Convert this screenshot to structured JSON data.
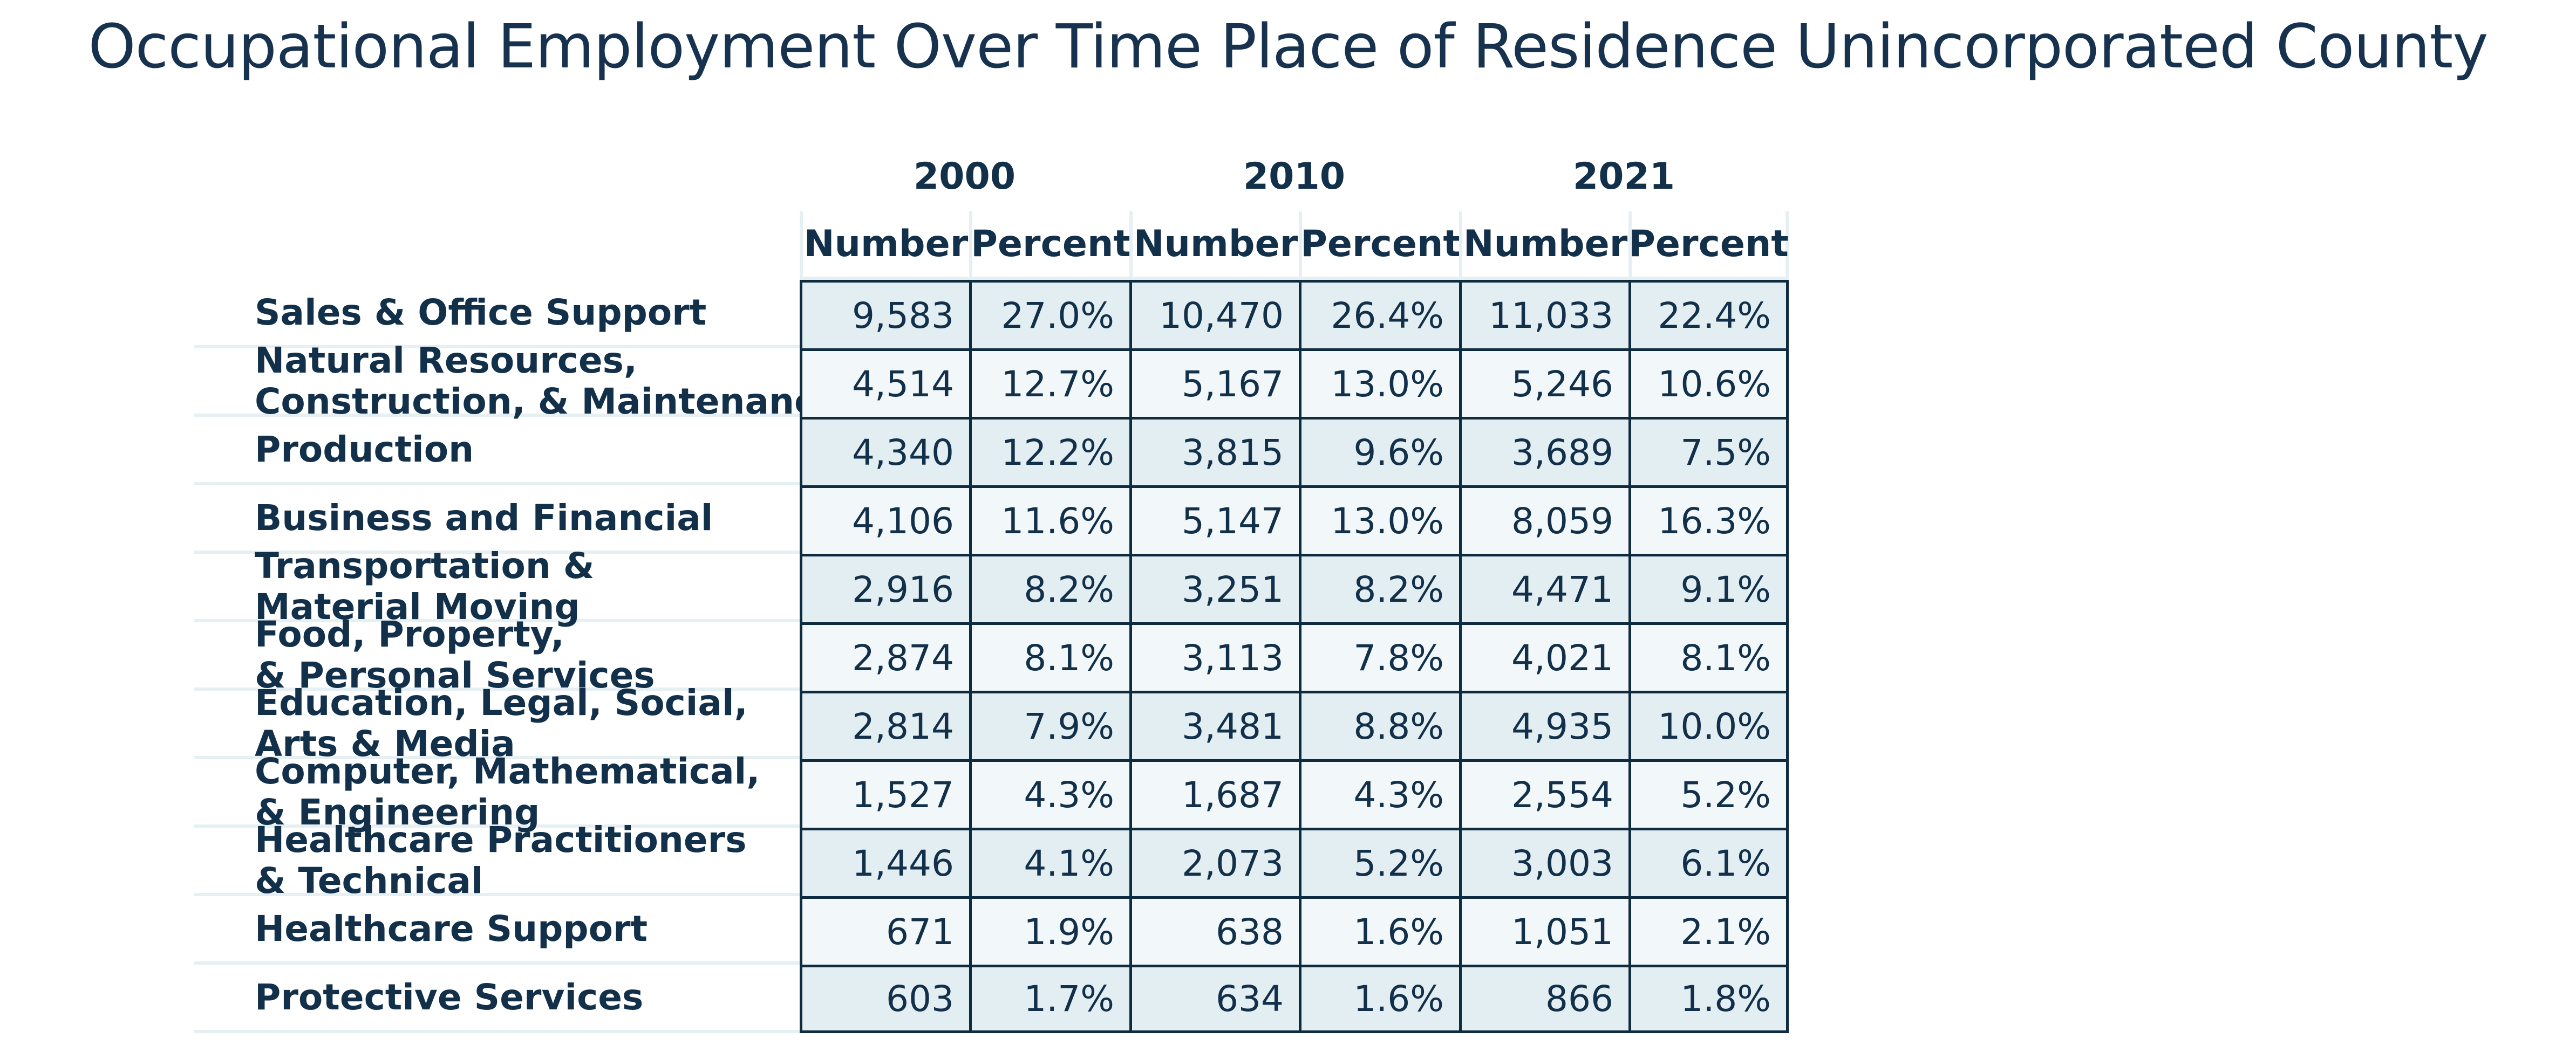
{
  "title": "Occupational Employment Over Time Place of Residence Unincorporated County",
  "years": [
    "2000",
    "2010",
    "2021"
  ],
  "column_headers": [
    "Number",
    "Percent",
    "Number",
    "Percent",
    "Number",
    "Percent"
  ],
  "rows": [
    {
      "label": "Sales & Office Support",
      "values": [
        "9,583",
        "27.0%",
        "10,470",
        "26.4%",
        "11,033",
        "22.4%"
      ]
    },
    {
      "label": "Natural Resources,\nConstruction, & Maintenance",
      "values": [
        "4,514",
        "12.7%",
        "5,167",
        "13.0%",
        "5,246",
        "10.6%"
      ]
    },
    {
      "label": "Production",
      "values": [
        "4,340",
        "12.2%",
        "3,815",
        "9.6%",
        "3,689",
        "7.5%"
      ]
    },
    {
      "label": "Business and Financial",
      "values": [
        "4,106",
        "11.6%",
        "5,147",
        "13.0%",
        "8,059",
        "16.3%"
      ]
    },
    {
      "label": "Transportation &\nMaterial Moving",
      "values": [
        "2,916",
        "8.2%",
        "3,251",
        "8.2%",
        "4,471",
        "9.1%"
      ]
    },
    {
      "label": "Food, Property,\n& Personal Services",
      "values": [
        "2,874",
        "8.1%",
        "3,113",
        "7.8%",
        "4,021",
        "8.1%"
      ]
    },
    {
      "label": "Education, Legal, Social,\nArts & Media",
      "values": [
        "2,814",
        "7.9%",
        "3,481",
        "8.8%",
        "4,935",
        "10.0%"
      ]
    },
    {
      "label": "Computer, Mathematical,\n& Engineering",
      "values": [
        "1,527",
        "4.3%",
        "1,687",
        "4.3%",
        "2,554",
        "5.2%"
      ]
    },
    {
      "label": "Healthcare Practitioners\n& Technical",
      "values": [
        "1,446",
        "4.1%",
        "2,073",
        "5.2%",
        "3,003",
        "6.1%"
      ]
    },
    {
      "label": "Healthcare Support",
      "values": [
        "671",
        "1.9%",
        "638",
        "1.6%",
        "1,051",
        "2.1%"
      ]
    },
    {
      "label": "Protective Services",
      "values": [
        "603",
        "1.7%",
        "634",
        "1.6%",
        "866",
        "1.8%"
      ]
    }
  ],
  "colors": {
    "text": "#12304a",
    "row_shade": "#e3eef2",
    "row_light": "#f2f8f9",
    "border": "#0f2b40"
  }
}
